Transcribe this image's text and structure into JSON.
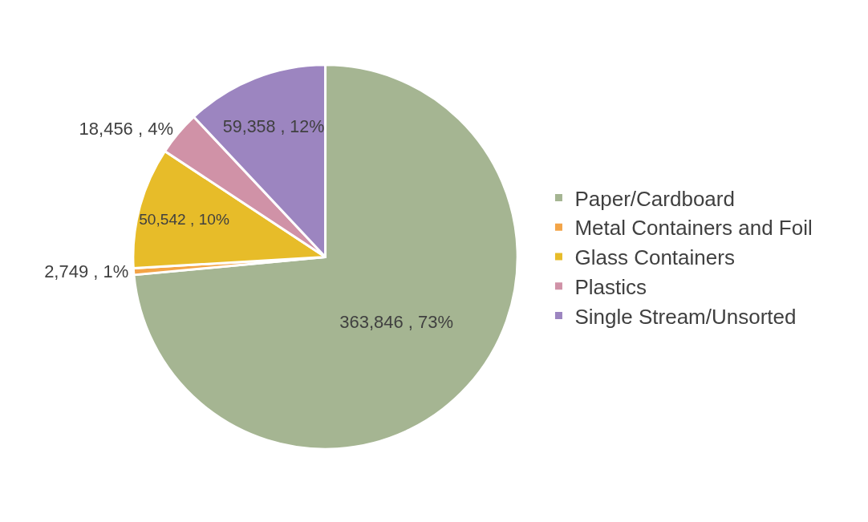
{
  "chart_data": {
    "type": "pie",
    "categories": [
      "Paper/Cardboard",
      "Metal Containers and Foil",
      "Glass Containers",
      "Plastics",
      "Single Stream/Unsorted"
    ],
    "values": [
      363846,
      2749,
      50542,
      18456,
      59358
    ],
    "value_labels": [
      "363,846 , 73%",
      "2,749 , 1%",
      "50,542 , 10%",
      "18,456 , 4%",
      "59,358 , 12%"
    ],
    "colors": [
      "#a5b592",
      "#f3a447",
      "#e7bc29",
      "#d092a7",
      "#9c85c0"
    ],
    "legend": "right"
  }
}
